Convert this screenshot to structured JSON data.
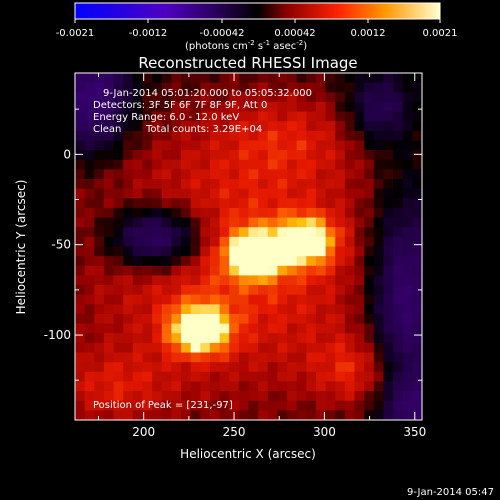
{
  "colorbar": {
    "ticks": [
      "-0.0021",
      "-0.0012",
      "-0.00042",
      "0.00042",
      "0.0012",
      "0.0021"
    ],
    "label_main": "(photons cm",
    "label_exp1": "-2",
    "label_mid": " s",
    "label_exp2": "-1",
    "label_end": " asec",
    "label_exp3": "-2",
    "label_close": ")"
  },
  "chart_data": {
    "type": "heatmap",
    "title": "Reconstructed RHESSI Image",
    "xlabel": "Heliocentric X (arcsec)",
    "ylabel": "Heliocentric Y (arcsec)",
    "xlim": [
      162,
      354
    ],
    "ylim": [
      -147,
      45
    ],
    "xticks": [
      "200",
      "250",
      "300",
      "350"
    ],
    "yticks": [
      "0",
      "-50",
      "-100"
    ],
    "clim": [
      -0.0021,
      0.0021
    ],
    "colormap": "hot (black-purple-red-orange-yellow-white)",
    "peak_position": [
      231,
      -97
    ],
    "sources": [
      {
        "x": 231,
        "y": -97,
        "relative_intensity": 1.0
      },
      {
        "x": 262,
        "y": -55,
        "relative_intensity": 0.93
      },
      {
        "x": 290,
        "y": -48,
        "relative_intensity": 0.85
      }
    ],
    "annotations": [
      "9-Jan-2014 05:01:20.000 to 05:05:32.000",
      "Detectors: 3F 5F 6F 7F 8F 9F, Att 0",
      "Energy Range: 6.0 - 12.0 keV",
      "Clean",
      "Total counts: 3.29E+04",
      "Position of Peak = [231,-97]"
    ]
  },
  "footer_timestamp": "9-Jan-2014 05:47"
}
